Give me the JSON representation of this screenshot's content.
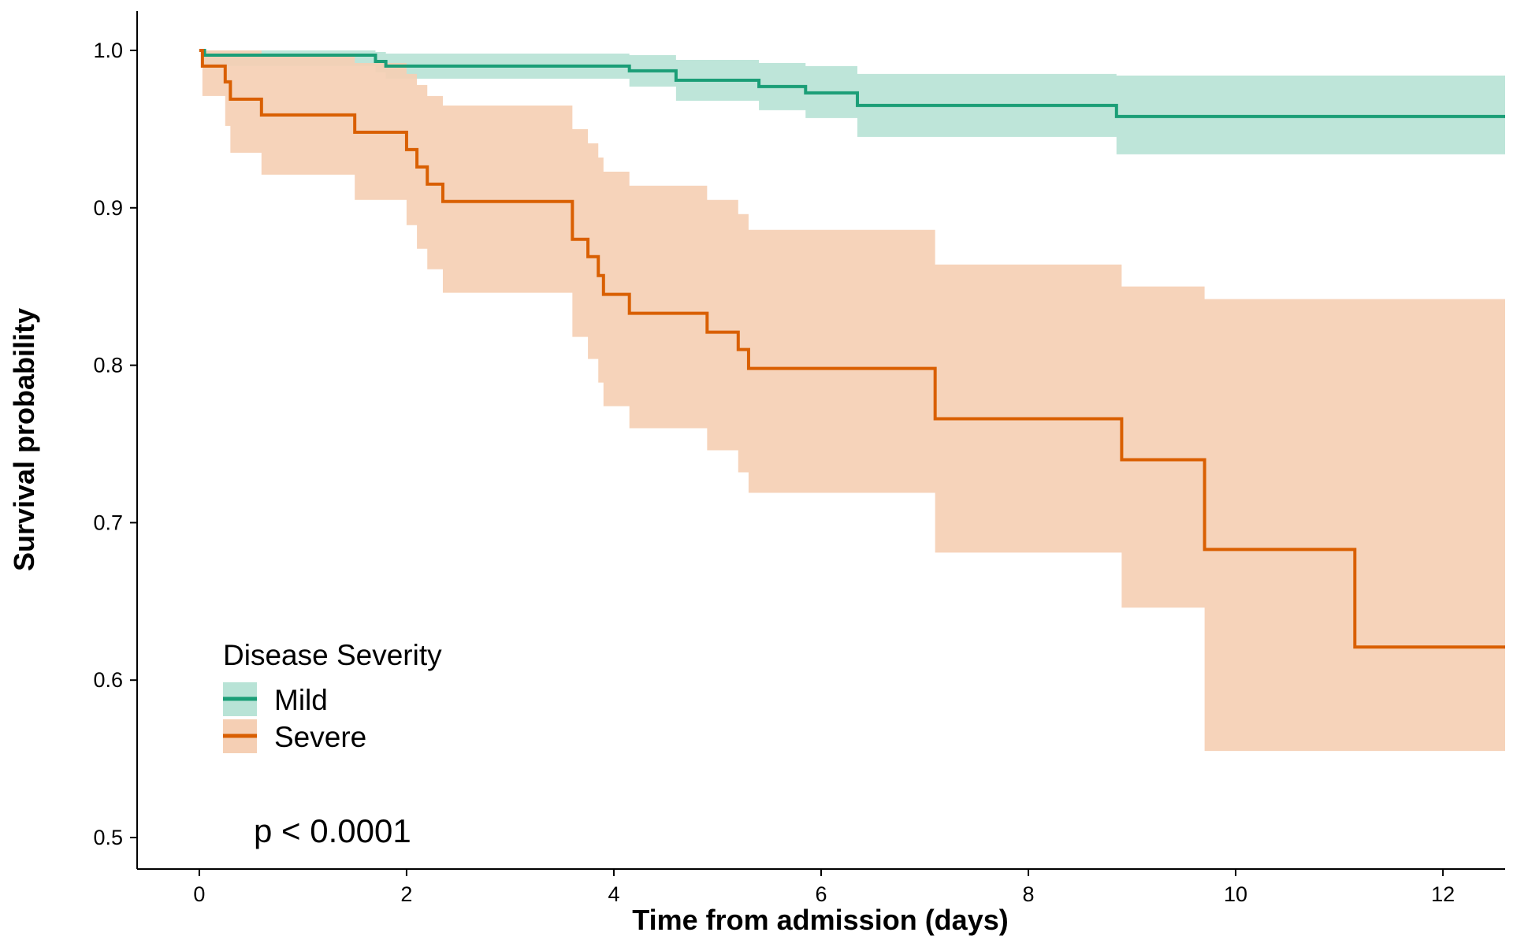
{
  "chart_data": {
    "type": "line",
    "xlabel": "Time from admission (days)",
    "ylabel": "Survival probability",
    "xlim": [
      -0.6,
      12.6
    ],
    "ylim": [
      0.48,
      1.025
    ],
    "x_ticks": [
      0,
      2,
      4,
      6,
      8,
      10,
      12
    ],
    "y_ticks": [
      0.5,
      0.6,
      0.7,
      0.8,
      0.9,
      1.0
    ],
    "y_tick_labels": [
      "0.5",
      "0.6",
      "0.7",
      "0.8",
      "0.9",
      "1.0"
    ],
    "grid": false,
    "legend": {
      "title": "Disease Severity",
      "position": "bottom-left"
    },
    "annotation": "p < 0.0001",
    "series": [
      {
        "name": "Mild",
        "color": "#1B9E77",
        "ci_color": "#B8E3D6",
        "x": [
          0,
          0.05,
          1.7,
          1.8,
          4.15,
          4.6,
          5.4,
          5.85,
          6.35,
          8.85,
          12.6
        ],
        "survival": [
          1.0,
          0.997,
          0.993,
          0.99,
          0.987,
          0.981,
          0.977,
          0.973,
          0.965,
          0.958,
          0.958
        ],
        "ci_lower": [
          1.0,
          0.99,
          0.986,
          0.982,
          0.977,
          0.968,
          0.962,
          0.957,
          0.945,
          0.934,
          0.934
        ],
        "ci_upper": [
          1.0,
          1.0,
          0.999,
          0.998,
          0.997,
          0.994,
          0.992,
          0.99,
          0.985,
          0.984,
          0.984
        ]
      },
      {
        "name": "Severe",
        "color": "#D95F02",
        "ci_color": "#F5CFB4",
        "x": [
          0,
          0.03,
          0.25,
          0.3,
          0.6,
          1.5,
          2.0,
          2.1,
          2.2,
          2.35,
          3.6,
          3.75,
          3.85,
          3.9,
          3.95,
          4.15,
          4.9,
          5.2,
          5.3,
          7.1,
          8.9,
          9.7,
          11.15,
          12.6
        ],
        "survival": [
          1.0,
          0.99,
          0.98,
          0.969,
          0.959,
          0.948,
          0.937,
          0.926,
          0.915,
          0.904,
          0.88,
          0.869,
          0.857,
          0.845,
          0.845,
          0.833,
          0.821,
          0.81,
          0.798,
          0.766,
          0.74,
          0.683,
          0.621,
          0.621
        ],
        "ci_lower": [
          1.0,
          0.971,
          0.952,
          0.935,
          0.921,
          0.905,
          0.889,
          0.874,
          0.861,
          0.846,
          0.818,
          0.804,
          0.789,
          0.774,
          0.774,
          0.76,
          0.746,
          0.732,
          0.719,
          0.681,
          0.646,
          0.555,
          0.555,
          0.555
        ],
        "ci_upper": [
          1.0,
          1.0,
          1.0,
          1.0,
          0.997,
          0.992,
          0.985,
          0.978,
          0.971,
          0.965,
          0.95,
          0.941,
          0.932,
          0.923,
          0.923,
          0.914,
          0.905,
          0.896,
          0.886,
          0.864,
          0.85,
          0.842,
          0.842,
          0.842
        ]
      }
    ]
  }
}
